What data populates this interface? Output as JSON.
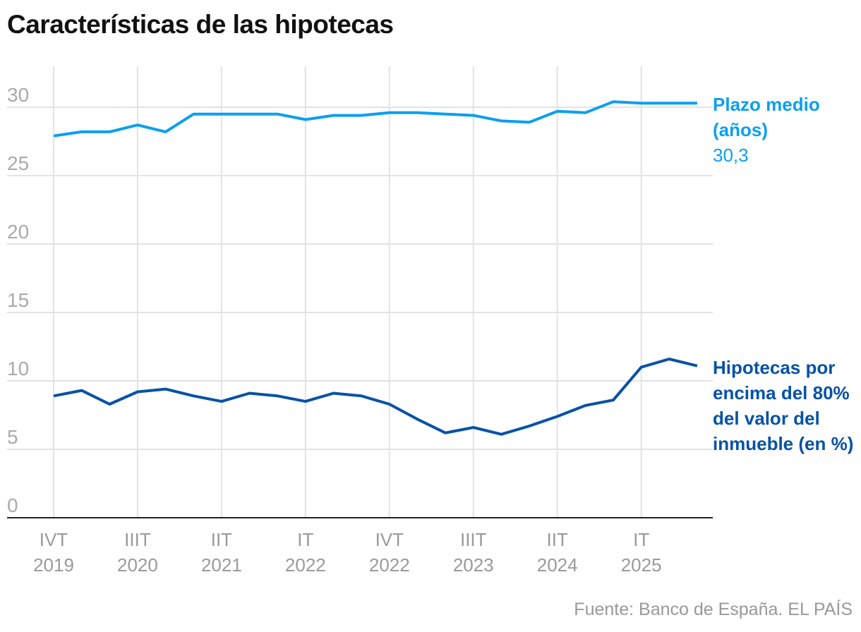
{
  "title": "Características de las hipotecas",
  "source": "Fuente: Banco de España. EL PAÍS",
  "chart_data": {
    "type": "line",
    "title": "Características de las hipotecas",
    "ylim": [
      0,
      33
    ],
    "yticks": [
      0,
      5,
      10,
      15,
      20,
      25,
      30
    ],
    "ytick_labels": [
      "0",
      "5",
      "10",
      "15",
      "20",
      "25",
      "30"
    ],
    "grid": true,
    "x": [
      "IVT 2019",
      "IT 2020",
      "IIT 2020",
      "IIIT 2020",
      "IVT 2020",
      "IT 2021",
      "IIT 2021",
      "IIIT 2021",
      "IVT 2021",
      "IT 2022",
      "IIT 2022",
      "IIIT 2022",
      "IVT 2022",
      "IT 2023",
      "IIT 2023",
      "IIIT 2023",
      "IVT 2023",
      "IT 2024",
      "IIT 2024",
      "IIIT 2024",
      "IVT 2024",
      "IT 2025",
      "IIT 2025",
      "IIIT 2025"
    ],
    "xticks": [
      {
        "index": 0,
        "line1": "IVT",
        "line2": "2019"
      },
      {
        "index": 3,
        "line1": "IIIT",
        "line2": "2020"
      },
      {
        "index": 6,
        "line1": "IIT",
        "line2": "2021"
      },
      {
        "index": 9,
        "line1": "IT",
        "line2": "2022"
      },
      {
        "index": 12,
        "line1": "IVT",
        "line2": "2022"
      },
      {
        "index": 15,
        "line1": "IIIT",
        "line2": "2023"
      },
      {
        "index": 18,
        "line1": "IIT",
        "line2": "2024"
      },
      {
        "index": 21,
        "line1": "IT",
        "line2": "2025"
      }
    ],
    "series": [
      {
        "name": "Plazo medio (años)",
        "last_label": "30,3",
        "color": "#0b9ff0",
        "values": [
          27.9,
          28.2,
          28.2,
          28.7,
          28.2,
          29.5,
          29.5,
          29.5,
          29.5,
          29.1,
          29.4,
          29.4,
          29.6,
          29.6,
          29.5,
          29.4,
          29.0,
          28.9,
          29.7,
          29.6,
          30.4,
          30.3,
          30.3,
          30.3
        ]
      },
      {
        "name": "Hipotecas por encima del 80% del valor del inmueble (en %)",
        "color": "#0652a6",
        "values": [
          8.9,
          9.3,
          8.3,
          9.2,
          9.4,
          8.9,
          8.5,
          9.1,
          8.9,
          8.5,
          9.1,
          8.9,
          8.3,
          7.2,
          6.2,
          6.6,
          6.1,
          6.7,
          7.4,
          8.2,
          8.6,
          11.0,
          11.6,
          11.1
        ]
      }
    ]
  }
}
